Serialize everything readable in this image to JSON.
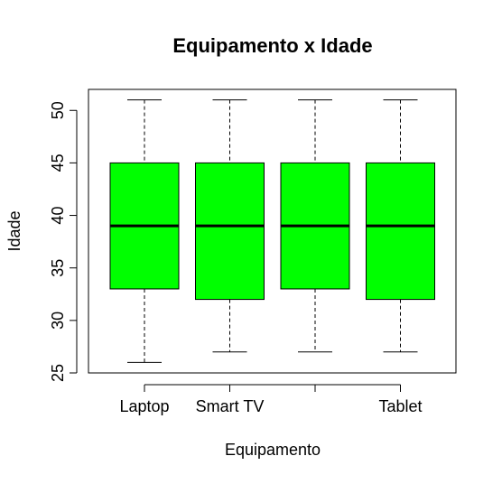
{
  "chart_data": {
    "type": "boxplot",
    "title": "Equipamento x Idade",
    "xlabel": "Equipamento",
    "ylabel": "Idade",
    "ylim": [
      25,
      52
    ],
    "y_ticks": [
      25,
      30,
      35,
      40,
      45,
      50
    ],
    "categories": [
      "Laptop",
      "Smart TV",
      "",
      "Tablet"
    ],
    "boxes": [
      {
        "category": "Laptop",
        "whisker_low": 26,
        "q1": 33,
        "median": 39,
        "q3": 45,
        "whisker_high": 51
      },
      {
        "category": "Smart TV",
        "whisker_low": 27,
        "q1": 32,
        "median": 39,
        "q3": 45,
        "whisker_high": 51
      },
      {
        "category": "",
        "whisker_low": 27,
        "q1": 33,
        "median": 39,
        "q3": 45,
        "whisker_high": 51
      },
      {
        "category": "Tablet",
        "whisker_low": 27,
        "q1": 32,
        "median": 39,
        "q3": 45,
        "whisker_high": 51
      }
    ],
    "box_color": "#00ff00",
    "grid": false,
    "legend": false
  }
}
